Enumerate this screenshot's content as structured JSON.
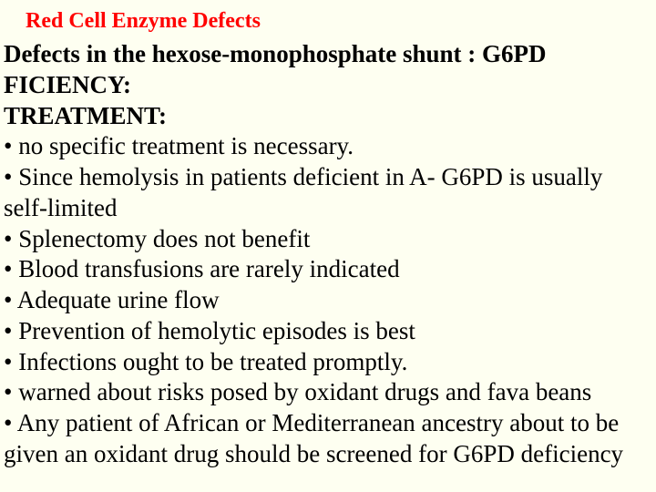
{
  "title": "Red Cell Enzyme Defects",
  "subtitle_line1": "Defects in the hexose-monophosphate shunt  : G6PD",
  "subtitle_line2": "FICIENCY:",
  "treatment_heading": "TREATMENT:",
  "bullets": [
    "• no specific treatment is necessary.",
    "• Since hemolysis in patients deficient in A- G6PD is usually self-limited",
    "• Splenectomy does not benefit",
    "• Blood transfusions are rarely indicated",
    "• Adequate urine flow",
    "• Prevention of hemolytic episodes is best",
    "• Infections ought to be treated promptly.",
    "• warned about risks posed by oxidant drugs and fava beans",
    "• Any patient of African or Mediterranean ancestry about to be given an oxidant drug should be screened for G6PD deficiency"
  ],
  "colors": {
    "background": "#fefff1",
    "title_color": "#ff0000",
    "text_color": "#000000"
  },
  "typography": {
    "title_fontsize": 24,
    "body_fontsize": 27,
    "font_family": "Times New Roman"
  }
}
